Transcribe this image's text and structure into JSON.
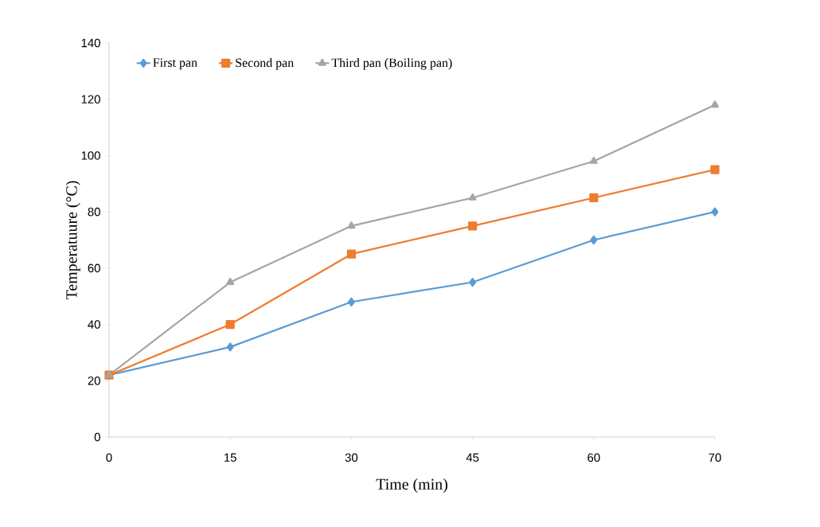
{
  "chart_data": {
    "type": "line",
    "xlabel": "Time (min)",
    "ylabel": "Temperatuure (°C)",
    "categories": [
      "0",
      "15",
      "30",
      "45",
      "60",
      "70"
    ],
    "series": [
      {
        "name": "First pan",
        "color": "#5b9bd5",
        "marker": "diamond",
        "values": [
          22,
          32,
          48,
          55,
          70,
          80
        ]
      },
      {
        "name": "Second pan",
        "color": "#ed7d31",
        "marker": "square",
        "values": [
          22,
          40,
          65,
          75,
          85,
          95
        ]
      },
      {
        "name": "Third pan (Boiling pan)",
        "color": "#a5a5a5",
        "marker": "triangle",
        "values": [
          22,
          55,
          75,
          85,
          98,
          118
        ]
      }
    ],
    "ylim": [
      0,
      140
    ],
    "yticks": [
      0,
      20,
      40,
      60,
      80,
      100,
      120,
      140
    ],
    "grid": false,
    "legend": "top",
    "line_style": "solid"
  }
}
